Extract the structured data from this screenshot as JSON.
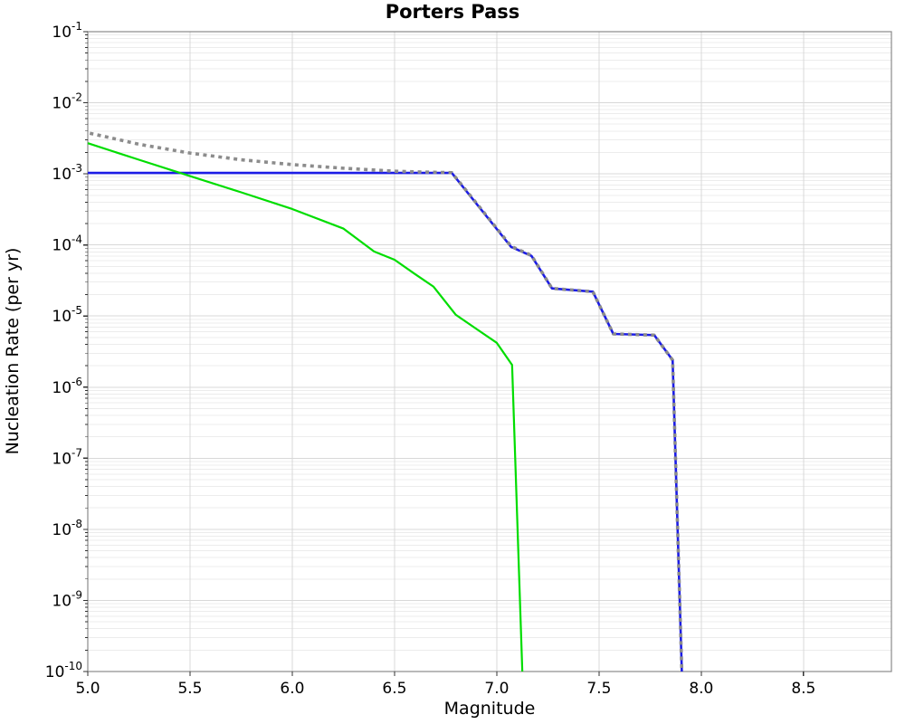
{
  "chart_data": {
    "type": "line",
    "title": "Porters Pass",
    "xlabel": "Magnitude",
    "ylabel": "Nucleation Rate (per yr)",
    "xlim": [
      5.0,
      8.93
    ],
    "ylim": [
      1e-10,
      0.1
    ],
    "y_scale": "log",
    "grid": true,
    "legend": null,
    "x_tick_values": [
      5.0,
      5.5,
      6.0,
      6.5,
      7.0,
      7.5,
      8.0,
      8.5
    ],
    "x_tick_labels": [
      "5.0",
      "5.5",
      "6.0",
      "6.5",
      "7.0",
      "7.5",
      "8.0",
      "8.5"
    ],
    "y_tick_exponents": [
      -1,
      -2,
      -3,
      -4,
      -5,
      -6,
      -7,
      -8,
      -9,
      -10
    ],
    "colors": {
      "blue_line": "#1c1ce6",
      "green_line": "#00dd00",
      "dotted_line": "#8c8c8c",
      "grid_major": "#d8d8d8",
      "grid_minor": "#ececec",
      "border": "#8a8a8a",
      "tick": "#333333"
    },
    "series": [
      {
        "name": "solid-blue",
        "color": "#1c1ce6",
        "style": "solid",
        "width": 2.6,
        "points": [
          [
            5.0,
            0.00103
          ],
          [
            6.78,
            0.00103
          ],
          [
            7.07,
            9.4e-05
          ],
          [
            7.17,
            7e-05
          ],
          [
            7.27,
            2.45e-05
          ],
          [
            7.47,
            2.2e-05
          ],
          [
            7.57,
            5.6e-06
          ],
          [
            7.77,
            5.4e-06
          ],
          [
            7.86,
            2.4e-06
          ],
          [
            7.905,
            1e-10
          ]
        ]
      },
      {
        "name": "solid-green",
        "color": "#00dd00",
        "style": "solid",
        "width": 2.2,
        "points": [
          [
            5.0,
            0.0027
          ],
          [
            5.25,
            0.00158
          ],
          [
            5.5,
            0.00093
          ],
          [
            5.75,
            0.00055
          ],
          [
            6.0,
            0.00032
          ],
          [
            6.25,
            0.00017
          ],
          [
            6.4,
            8.1e-05
          ],
          [
            6.5,
            6.2e-05
          ],
          [
            6.6,
            3.9e-05
          ],
          [
            6.69,
            2.6e-05
          ],
          [
            6.8,
            1.04e-05
          ],
          [
            6.9,
            6.6e-06
          ],
          [
            7.0,
            4.2e-06
          ],
          [
            7.075,
            2.05e-06
          ],
          [
            7.125,
            1e-10
          ]
        ]
      },
      {
        "name": "dotted-gray-total",
        "color": "#8c8c8c",
        "style": "dotted",
        "width": 3.6,
        "points": [
          [
            5.01,
            0.00373
          ],
          [
            5.25,
            0.00261
          ],
          [
            5.5,
            0.00196
          ],
          [
            5.75,
            0.00158
          ],
          [
            6.0,
            0.00135
          ],
          [
            6.25,
            0.0012
          ],
          [
            6.5,
            0.00109
          ],
          [
            6.65,
            0.00106
          ],
          [
            6.78,
            0.00104
          ],
          [
            7.07,
            9.6e-05
          ],
          [
            7.17,
            7.1e-05
          ],
          [
            7.27,
            2.45e-05
          ],
          [
            7.47,
            2.2e-05
          ],
          [
            7.57,
            5.6e-06
          ],
          [
            7.77,
            5.4e-06
          ],
          [
            7.86,
            2.4e-06
          ],
          [
            7.905,
            1e-10
          ]
        ]
      }
    ]
  }
}
